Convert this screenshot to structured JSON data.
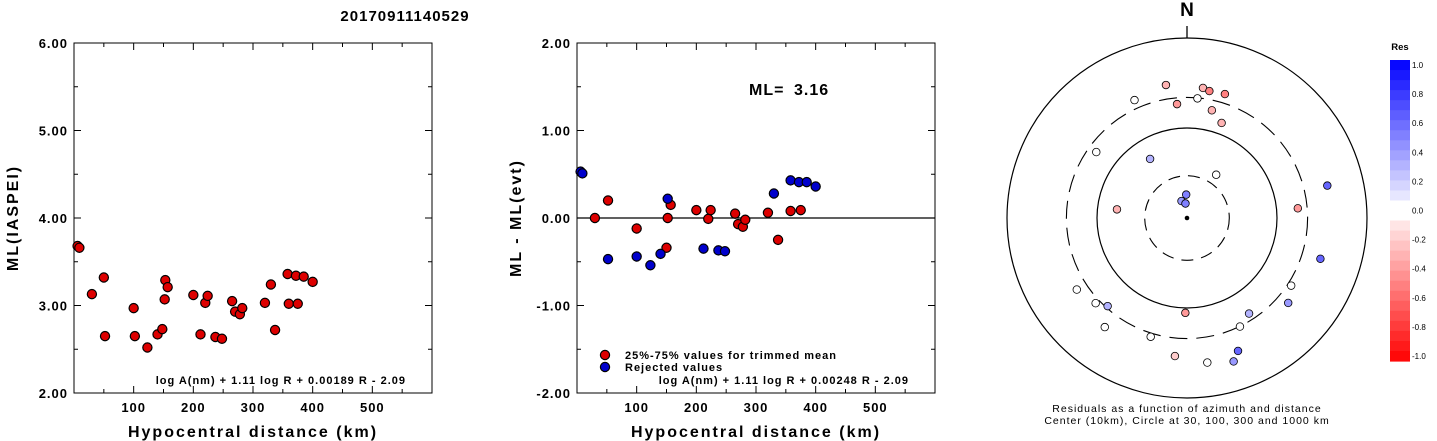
{
  "title": "20170911140529",
  "chart_data": [
    {
      "type": "scatter",
      "ylabel": "ML(IASPEI)",
      "xlabel": "Hypocentral distance (km)",
      "xlim": [
        0,
        600
      ],
      "ylim": [
        2,
        6
      ],
      "x_ticks": [
        {
          "v": 100,
          "label": "100"
        },
        {
          "v": 200,
          "label": "200"
        },
        {
          "v": 300,
          "label": "300"
        },
        {
          "v": 400,
          "label": "400"
        },
        {
          "v": 500,
          "label": "500"
        }
      ],
      "y_ticks": [
        {
          "v": 2,
          "label": "2.00"
        },
        {
          "v": 3,
          "label": "3.00"
        },
        {
          "v": 4,
          "label": "4.00"
        },
        {
          "v": 5,
          "label": "5.00"
        },
        {
          "v": 6,
          "label": "6.00"
        }
      ],
      "formula": "log A(nm) + 1.11 log R + 0.00189 R - 2.09",
      "points_color": "#dd0000",
      "points": [
        [
          6,
          3.68
        ],
        [
          9,
          3.66
        ],
        [
          30,
          3.13
        ],
        [
          50,
          3.32
        ],
        [
          52,
          2.65
        ],
        [
          100,
          2.97
        ],
        [
          102,
          2.65
        ],
        [
          123,
          2.52
        ],
        [
          140,
          2.67
        ],
        [
          148,
          2.73
        ],
        [
          152,
          3.07
        ],
        [
          153,
          3.29
        ],
        [
          157,
          3.21
        ],
        [
          200,
          3.12
        ],
        [
          212,
          2.67
        ],
        [
          220,
          3.03
        ],
        [
          224,
          3.11
        ],
        [
          237,
          2.64
        ],
        [
          248,
          2.62
        ],
        [
          265,
          3.05
        ],
        [
          270,
          2.93
        ],
        [
          278,
          2.9
        ],
        [
          282,
          2.97
        ],
        [
          320,
          3.03
        ],
        [
          330,
          3.24
        ],
        [
          337,
          2.72
        ],
        [
          358,
          3.36
        ],
        [
          360,
          3.02
        ],
        [
          372,
          3.34
        ],
        [
          375,
          3.02
        ],
        [
          385,
          3.33
        ],
        [
          400,
          3.27
        ]
      ]
    },
    {
      "type": "scatter",
      "ylabel": "ML - ML(evt)",
      "xlabel": "Hypocentral distance (km)",
      "xlim": [
        0,
        600
      ],
      "ylim": [
        -2,
        2
      ],
      "x_ticks": [
        {
          "v": 100,
          "label": "100"
        },
        {
          "v": 200,
          "label": "200"
        },
        {
          "v": 300,
          "label": "300"
        },
        {
          "v": 400,
          "label": "400"
        },
        {
          "v": 500,
          "label": "500"
        }
      ],
      "y_ticks": [
        {
          "v": -2,
          "label": "-2.00"
        },
        {
          "v": -1,
          "label": "-1.00"
        },
        {
          "v": 0,
          "label": "0.00"
        },
        {
          "v": 1,
          "label": "1.00"
        },
        {
          "v": 2,
          "label": "2.00"
        }
      ],
      "ml_label": "ML=",
      "ml_value": "3.16",
      "legend": [
        {
          "label": "25%-75% values for trimmed mean",
          "color": "#dd0000"
        },
        {
          "label": "Rejected values",
          "color": "#0000cc"
        }
      ],
      "formula": "log A(nm) + 1.11 log R + 0.00248 R - 2.09",
      "series": [
        {
          "color": "#dd0000",
          "points": [
            [
              30,
              0.0
            ],
            [
              52,
              0.2
            ],
            [
              100,
              -0.12
            ],
            [
              150,
              -0.34
            ],
            [
              152,
              0.0
            ],
            [
              157,
              0.15
            ],
            [
              200,
              0.09
            ],
            [
              220,
              -0.01
            ],
            [
              224,
              0.09
            ],
            [
              265,
              0.05
            ],
            [
              270,
              -0.07
            ],
            [
              278,
              -0.1
            ],
            [
              282,
              -0.02
            ],
            [
              320,
              0.06
            ],
            [
              337,
              -0.25
            ],
            [
              358,
              0.08
            ],
            [
              375,
              0.09
            ]
          ]
        },
        {
          "color": "#0000cc",
          "points": [
            [
              6,
              0.53
            ],
            [
              9,
              0.51
            ],
            [
              52,
              -0.47
            ],
            [
              100,
              -0.44
            ],
            [
              123,
              -0.54
            ],
            [
              140,
              -0.41
            ],
            [
              152,
              0.22
            ],
            [
              212,
              -0.35
            ],
            [
              237,
              -0.37
            ],
            [
              248,
              -0.38
            ],
            [
              330,
              0.28
            ],
            [
              358,
              0.43
            ],
            [
              372,
              0.41
            ],
            [
              385,
              0.41
            ],
            [
              400,
              0.36
            ]
          ]
        }
      ]
    },
    {
      "type": "polar",
      "north_label": "N",
      "caption_line1": "Residuals as a function of azimuth and distance",
      "caption_line2": "Center (10km), Circle at 30, 100, 300 and 1000 km",
      "colorbar_title": "Res",
      "colorbar_ticks": [
        "1.0",
        "0.8",
        "0.6",
        "0.4",
        "0.2",
        "0.0",
        "-0.2",
        "-0.4",
        "-0.6",
        "-0.8",
        "-1.0"
      ],
      "points": [
        {
          "az": -9,
          "r": 0.748,
          "res": -0.3
        },
        {
          "az": -24,
          "r": 0.717,
          "res": 0.0
        },
        {
          "az": 7,
          "r": 0.728,
          "res": -0.3
        },
        {
          "az": 10,
          "r": 0.716,
          "res": -0.5
        },
        {
          "az": 17,
          "r": 0.72,
          "res": -0.5
        },
        {
          "az": 5,
          "r": 0.667,
          "res": 0.0
        },
        {
          "az": -5,
          "r": 0.635,
          "res": -0.4
        },
        {
          "az": 13,
          "r": 0.614,
          "res": -0.3
        },
        {
          "az": 20,
          "r": 0.562,
          "res": -0.3
        },
        {
          "az": -54,
          "r": 0.623,
          "res": 0.0
        },
        {
          "az": -32,
          "r": 0.387,
          "res": 0.3
        },
        {
          "az": 34,
          "r": 0.29,
          "res": 0.0
        },
        {
          "az": -2,
          "r": 0.13,
          "res": 0.5
        },
        {
          "az": -18,
          "r": 0.099,
          "res": 0.4
        },
        {
          "az": -6,
          "r": 0.081,
          "res": 0.5
        },
        {
          "az": -83,
          "r": 0.392,
          "res": -0.3
        },
        {
          "az": 85,
          "r": 0.618,
          "res": -0.4
        },
        {
          "az": 77,
          "r": 0.8,
          "res": 0.6
        },
        {
          "az": 107,
          "r": 0.775,
          "res": 0.6
        },
        {
          "az": 123,
          "r": 0.69,
          "res": 0.0
        },
        {
          "az": 130,
          "r": 0.734,
          "res": 0.4
        },
        {
          "az": -123,
          "r": 0.73,
          "res": 0.0
        },
        {
          "az": -133,
          "r": 0.694,
          "res": 0.0
        },
        {
          "az": -143,
          "r": 0.759,
          "res": 0.0
        },
        {
          "az": -138,
          "r": 0.659,
          "res": 0.3
        },
        {
          "az": -179,
          "r": 0.527,
          "res": -0.4
        },
        {
          "az": -163,
          "r": 0.69,
          "res": 0.0
        },
        {
          "az": -175,
          "r": 0.77,
          "res": -0.2
        },
        {
          "az": 172,
          "r": 0.811,
          "res": 0.0
        },
        {
          "az": 154,
          "r": 0.671,
          "res": 0.0
        },
        {
          "az": 159,
          "r": 0.791,
          "res": 0.6
        },
        {
          "az": 162,
          "r": 0.838,
          "res": 0.4
        },
        {
          "az": 147,
          "r": 0.633,
          "res": 0.3
        }
      ]
    }
  ]
}
